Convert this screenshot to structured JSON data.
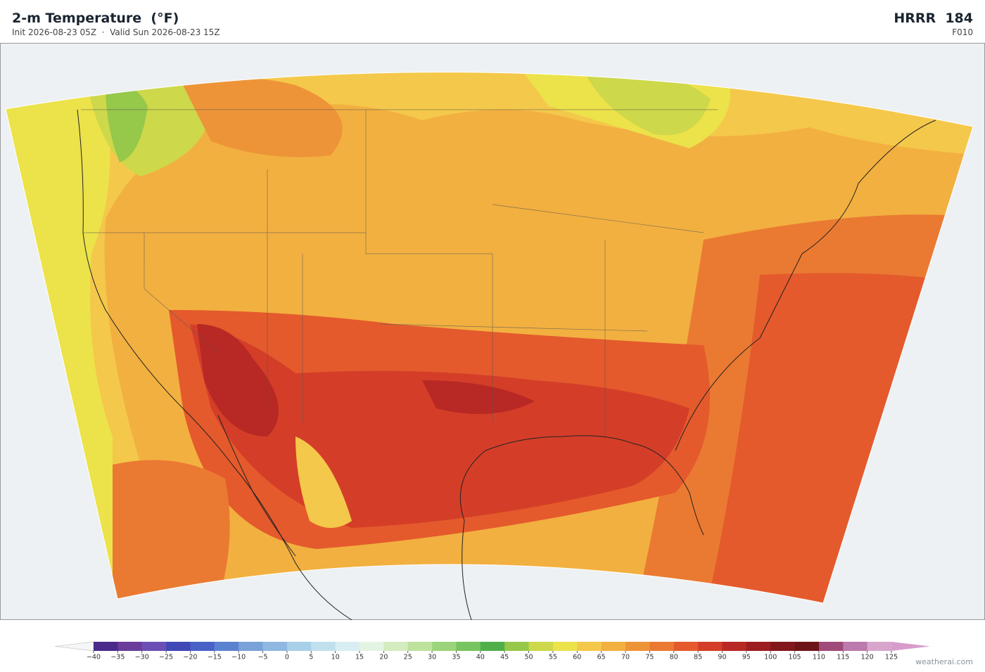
{
  "header": {
    "title": "2-m Temperature  (°F)",
    "subtitle": "Init 2026-08-23 05Z  ·  Valid Sun 2026-08-23 15Z",
    "model": "HRRR  184",
    "forecast_hour": "F010"
  },
  "colorbar": {
    "ticks": [
      {
        "value": -40,
        "label": "−40"
      },
      {
        "value": -35,
        "label": "−35"
      },
      {
        "value": -30,
        "label": "−30"
      },
      {
        "value": -25,
        "label": "−25"
      },
      {
        "value": -20,
        "label": "−20"
      },
      {
        "value": -15,
        "label": "−15"
      },
      {
        "value": -10,
        "label": "−10"
      },
      {
        "value": -5,
        "label": "−5"
      },
      0,
      5,
      10,
      15,
      20,
      25,
      30,
      35,
      40,
      45,
      50,
      55,
      60,
      65,
      70,
      75,
      80,
      85,
      90,
      95,
      100,
      105,
      110,
      115,
      120,
      125
    ],
    "colors": [
      "#4a2a8a",
      "#6a3d9a",
      "#6b4fb5",
      "#4048b8",
      "#4a62c8",
      "#5b82d0",
      "#78a2d8",
      "#90b8e0",
      "#a8d0e8",
      "#c0e0ee",
      "#d8eef2",
      "#e4f4e4",
      "#d4ecc0",
      "#bde29c",
      "#9bd47a",
      "#78c460",
      "#4fb04a",
      "#96c84a",
      "#cdd84a",
      "#ece24a",
      "#f4c84a",
      "#f2b040",
      "#ee9438",
      "#ea7a32",
      "#e45a2c",
      "#d43e28",
      "#b82824",
      "#9c1e20",
      "#82181c",
      "#6e1418",
      "#a04a7a",
      "#bc7aae",
      "#d8a6cc"
    ],
    "under_color": "#f4f6f8",
    "over_color": "#d89ccc"
  },
  "footer": {
    "credit": "weatherai.com"
  }
}
